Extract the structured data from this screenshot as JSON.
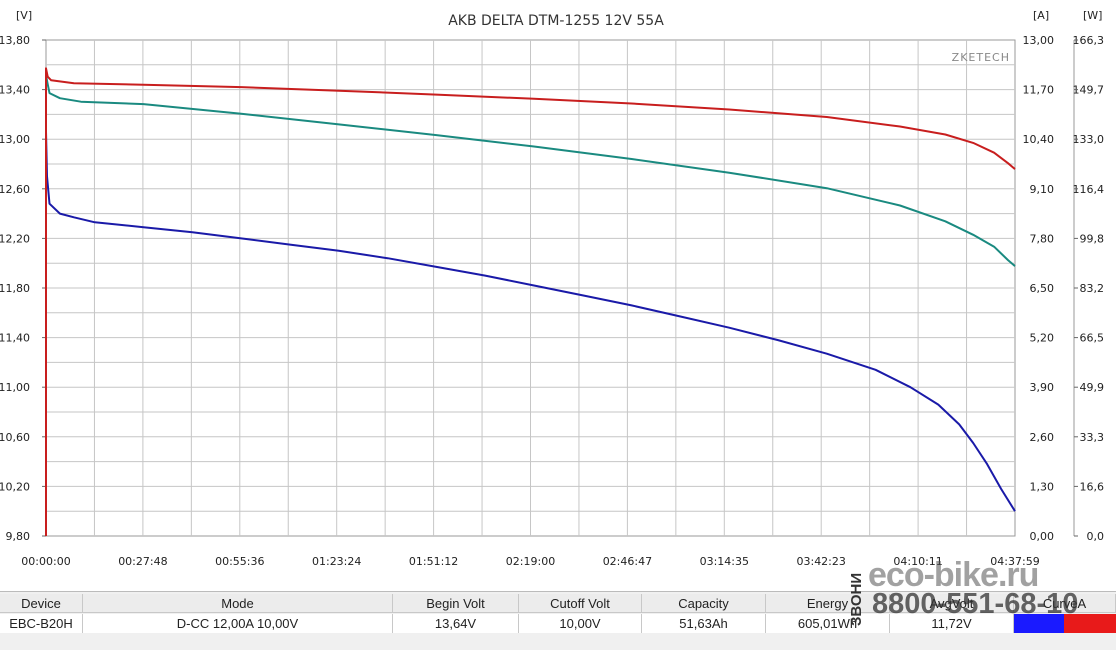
{
  "chart_data": {
    "type": "line",
    "title": "AKB DELTA DTM-1255 12V 55A",
    "watermark_logo": "ZKETECH",
    "left_axis": {
      "unit": "[V]",
      "ticks": [
        "13,80",
        "13,40",
        "13,00",
        "12,60",
        "12,20",
        "11,80",
        "11,40",
        "11,00",
        "10,60",
        "10,20",
        "9,80"
      ],
      "ylim": [
        9.8,
        13.8
      ]
    },
    "right_axis_1": {
      "unit": "[A]",
      "ticks": [
        "13,00",
        "11,70",
        "10,40",
        "9,10",
        "7,80",
        "6,50",
        "5,20",
        "3,90",
        "2,60",
        "1,30",
        "0,00"
      ],
      "ylim": [
        0,
        13.0
      ]
    },
    "right_axis_2": {
      "unit": "[W]",
      "ticks": [
        "166,3",
        "149,7",
        "133,0",
        "116,4",
        "99,8",
        "83,2",
        "66,5",
        "49,9",
        "33,3",
        "16,6",
        "0,0"
      ],
      "ylim": [
        0,
        166.3
      ]
    },
    "x_ticks": [
      "00:00:00",
      "00:27:48",
      "00:55:36",
      "01:23:24",
      "01:51:12",
      "02:19:00",
      "02:46:47",
      "03:14:35",
      "03:42:23",
      "04:10:11",
      "04:37:59"
    ],
    "xlim_minutes": [
      0,
      278
    ],
    "grid": true,
    "series": [
      {
        "color": "#1a1aa8",
        "axis": "left",
        "points": [
          [
            0,
            13.06
          ],
          [
            0.3,
            12.7
          ],
          [
            1,
            12.48
          ],
          [
            4,
            12.4
          ],
          [
            8,
            12.37
          ],
          [
            14,
            12.33
          ],
          [
            28,
            12.29
          ],
          [
            42,
            12.25
          ],
          [
            56,
            12.2
          ],
          [
            70,
            12.15
          ],
          [
            84,
            12.1
          ],
          [
            98,
            12.04
          ],
          [
            112,
            11.97
          ],
          [
            126,
            11.9
          ],
          [
            140,
            11.82
          ],
          [
            154,
            11.74
          ],
          [
            168,
            11.66
          ],
          [
            182,
            11.57
          ],
          [
            196,
            11.48
          ],
          [
            210,
            11.38
          ],
          [
            224,
            11.27
          ],
          [
            238,
            11.14
          ],
          [
            248,
            11.0
          ],
          [
            256,
            10.86
          ],
          [
            262,
            10.7
          ],
          [
            266,
            10.55
          ],
          [
            270,
            10.38
          ],
          [
            274,
            10.18
          ],
          [
            278,
            10.0
          ]
        ]
      },
      {
        "color": "#1a8a80",
        "axis": "right_w",
        "points": [
          [
            0,
            154.5
          ],
          [
            0.4,
            152.0
          ],
          [
            1,
            148.5
          ],
          [
            4,
            146.8
          ],
          [
            10,
            145.6
          ],
          [
            28,
            144.8
          ],
          [
            56,
            141.6
          ],
          [
            84,
            138.0
          ],
          [
            112,
            134.4
          ],
          [
            140,
            130.6
          ],
          [
            168,
            126.4
          ],
          [
            196,
            121.8
          ],
          [
            224,
            116.6
          ],
          [
            245,
            110.8
          ],
          [
            258,
            105.5
          ],
          [
            266,
            101.0
          ],
          [
            272,
            97.0
          ],
          [
            276,
            92.5
          ],
          [
            278,
            90.5
          ]
        ]
      },
      {
        "color": "#c81e1e",
        "axis": "right_w",
        "points": [
          [
            0,
            156.8
          ],
          [
            0.5,
            154.0
          ],
          [
            1.5,
            152.8
          ],
          [
            8,
            151.8
          ],
          [
            28,
            151.3
          ],
          [
            56,
            150.5
          ],
          [
            84,
            149.3
          ],
          [
            112,
            148.0
          ],
          [
            140,
            146.6
          ],
          [
            168,
            145.0
          ],
          [
            196,
            143.0
          ],
          [
            224,
            140.5
          ],
          [
            245,
            137.3
          ],
          [
            258,
            134.6
          ],
          [
            266,
            131.8
          ],
          [
            272,
            128.5
          ],
          [
            276,
            125.0
          ],
          [
            278,
            123.0
          ]
        ]
      }
    ]
  },
  "table": {
    "headers": [
      "Device",
      "Mode",
      "Begin Volt",
      "Cutoff Volt",
      "Capacity",
      "Energy",
      "AvgVolt",
      "CurveA"
    ],
    "values": [
      "EBC-B20H",
      "D-CC  12,00A  10,00V",
      "13,64V",
      "10,00V",
      "51,63Ah",
      "605,01Wh",
      "11,72V",
      ""
    ],
    "swatch_colors": [
      "#1a1aff",
      "#e81a1a"
    ]
  },
  "watermark": {
    "vertical": "ЗВОНИ",
    "site": "eco-bike.ru",
    "phone": "8800-551-68-10"
  }
}
